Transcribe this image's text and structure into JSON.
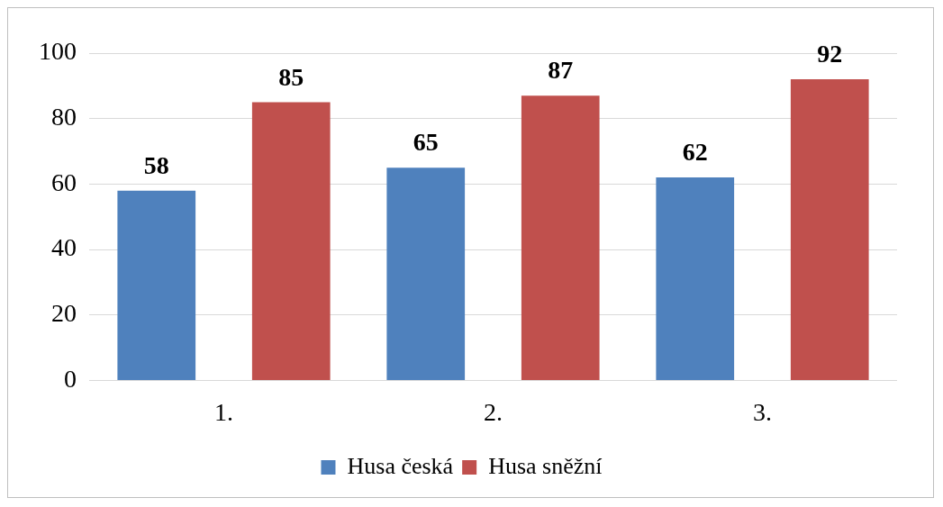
{
  "chart_data": {
    "type": "bar",
    "categories": [
      "1.",
      "2.",
      "3."
    ],
    "series": [
      {
        "name": "Husa česká",
        "color": "#4f81bd",
        "values": [
          58,
          65,
          62
        ]
      },
      {
        "name": "Husa sněžní",
        "color": "#c0504d",
        "values": [
          85,
          87,
          92
        ]
      }
    ],
    "ylim": [
      0,
      100
    ],
    "yticks": [
      0,
      20,
      40,
      60,
      80,
      100
    ],
    "grid": "y",
    "legend": "bottom",
    "data_labels": true
  }
}
